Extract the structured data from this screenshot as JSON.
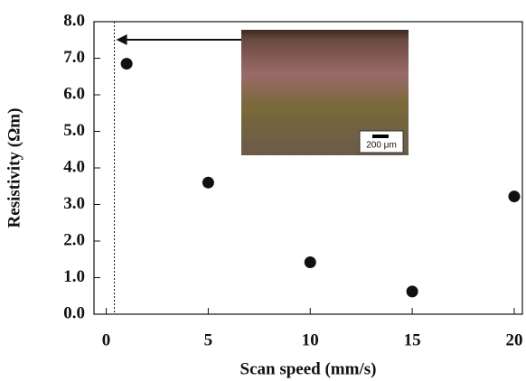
{
  "chart_data": {
    "type": "scatter",
    "x_label": "Scan speed (mm/s)",
    "y_label": "Resistivity (Ωm)",
    "x": [
      1,
      5,
      10,
      15,
      20
    ],
    "values": [
      6.85,
      3.6,
      1.42,
      0.62,
      3.22
    ],
    "color": "#111111",
    "xlim": [
      -0.6,
      20.4
    ],
    "ylim": [
      0,
      8
    ],
    "xticks": [
      0,
      5,
      10,
      15,
      20
    ],
    "yticks": [
      {
        "value": 0,
        "label": "0.0"
      },
      {
        "value": 1,
        "label": "1.0"
      },
      {
        "value": 2,
        "label": "2.0"
      },
      {
        "value": 3,
        "label": "3.0"
      },
      {
        "value": 4,
        "label": "4.0"
      },
      {
        "value": 5,
        "label": "5.0"
      },
      {
        "value": 6,
        "label": "6.0"
      },
      {
        "value": 7,
        "label": "7.0"
      },
      {
        "value": 8,
        "label": "8.0"
      }
    ],
    "reference_x": 0.4,
    "inset_scale_label": "200 μm"
  }
}
